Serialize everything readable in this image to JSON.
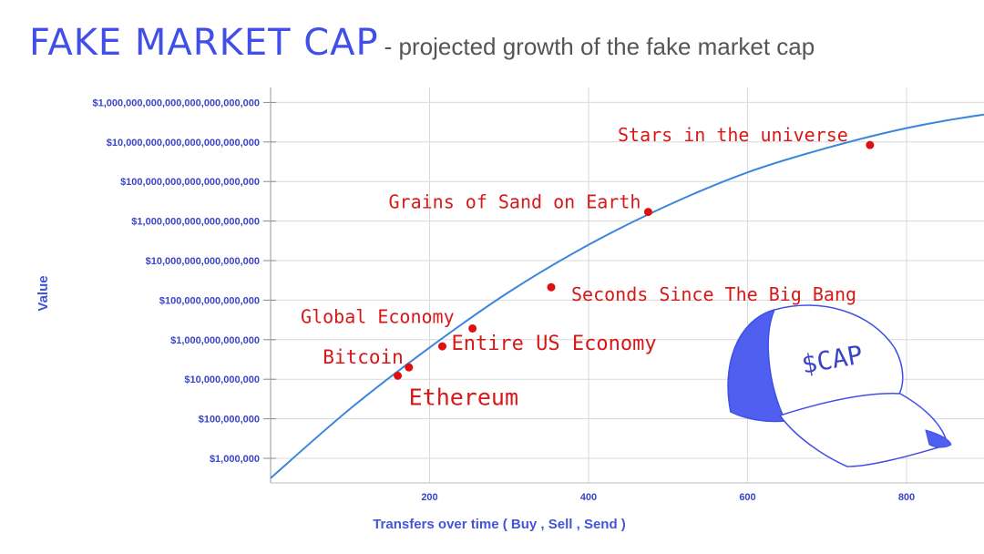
{
  "title": {
    "main": "FAKE MARKET CAP",
    "sub": "- projected growth of the fake market cap"
  },
  "colors": {
    "accent": "#4050e6",
    "curve": "#3a86dd",
    "marker": "#e01010",
    "annotation": "#d81818",
    "grid": "#d9d9d9"
  },
  "chart_data": {
    "type": "line",
    "title": "FAKE MARKET CAP",
    "subtitle": "- projected growth of the fake market cap",
    "xlabel": "Transfers over time ( Buy , Sell , Send )",
    "ylabel": "Value",
    "y_scale": "log",
    "xlim": [
      0,
      1000
    ],
    "ylim": [
      100000,
      1000000000000000000000000000000
    ],
    "grid": true,
    "x_ticks": [
      {
        "value": 200,
        "label": "200"
      },
      {
        "value": 400,
        "label": "400"
      },
      {
        "value": 600,
        "label": "600"
      },
      {
        "value": 800,
        "label": "800"
      }
    ],
    "y_ticks": [
      {
        "exp": 6,
        "label": "$1,000,000"
      },
      {
        "exp": 8,
        "label": "$100,000,000"
      },
      {
        "exp": 10,
        "label": "$10,000,000,000"
      },
      {
        "exp": 12,
        "label": "$1,000,000,000,000"
      },
      {
        "exp": 14,
        "label": "$100,000,000,000,000"
      },
      {
        "exp": 16,
        "label": "$10,000,000,000,000,000"
      },
      {
        "exp": 18,
        "label": "$1,000,000,000,000,000,000"
      },
      {
        "exp": 20,
        "label": "$100,000,000,000,000,000,000"
      },
      {
        "exp": 22,
        "label": "$10,000,000,000,000,000,000,000"
      },
      {
        "exp": 24,
        "label": "$1,000,000,000,000,000,000,000,000"
      }
    ],
    "series": [
      {
        "curve_points": [
          {
            "x": 0,
            "y": 100000
          },
          {
            "x": 100,
            "y": 320000000
          },
          {
            "x": 200,
            "y": 400000000000
          },
          {
            "x": 300,
            "y": 260000000000000
          },
          {
            "x": 400,
            "y": 63000000000000000
          },
          {
            "x": 500,
            "y": 6300000000000000000
          },
          {
            "x": 600,
            "y": 290000000000000000000
          },
          {
            "x": 700,
            "y": 5000000000000000000000
          },
          {
            "x": 800,
            "y": 50000000000000000000000
          },
          {
            "x": 900,
            "y": 250000000000000000000000
          },
          {
            "x": 1000,
            "y": 630000000000000000000000
          }
        ]
      }
    ],
    "annotations": [
      {
        "label": "Ethereum",
        "x": 160,
        "y": 15000000000
      },
      {
        "label": "Bitcoin",
        "x": 174,
        "y": 40000000000
      },
      {
        "label": "Entire US Economy",
        "x": 216,
        "y": 460000000000
      },
      {
        "label": "Global Economy",
        "x": 254,
        "y": 3700000000000
      },
      {
        "label": "Seconds Since The Big Bang",
        "x": 353,
        "y": 450000000000000
      },
      {
        "label": "Grains of Sand on Earth",
        "x": 475,
        "y": 2900000000000000000
      },
      {
        "label": "Stars in the universe",
        "x": 754,
        "y": 7000000000000000000000
      }
    ]
  },
  "illustration": {
    "name": "cap-illustration",
    "label": "$CAP"
  }
}
